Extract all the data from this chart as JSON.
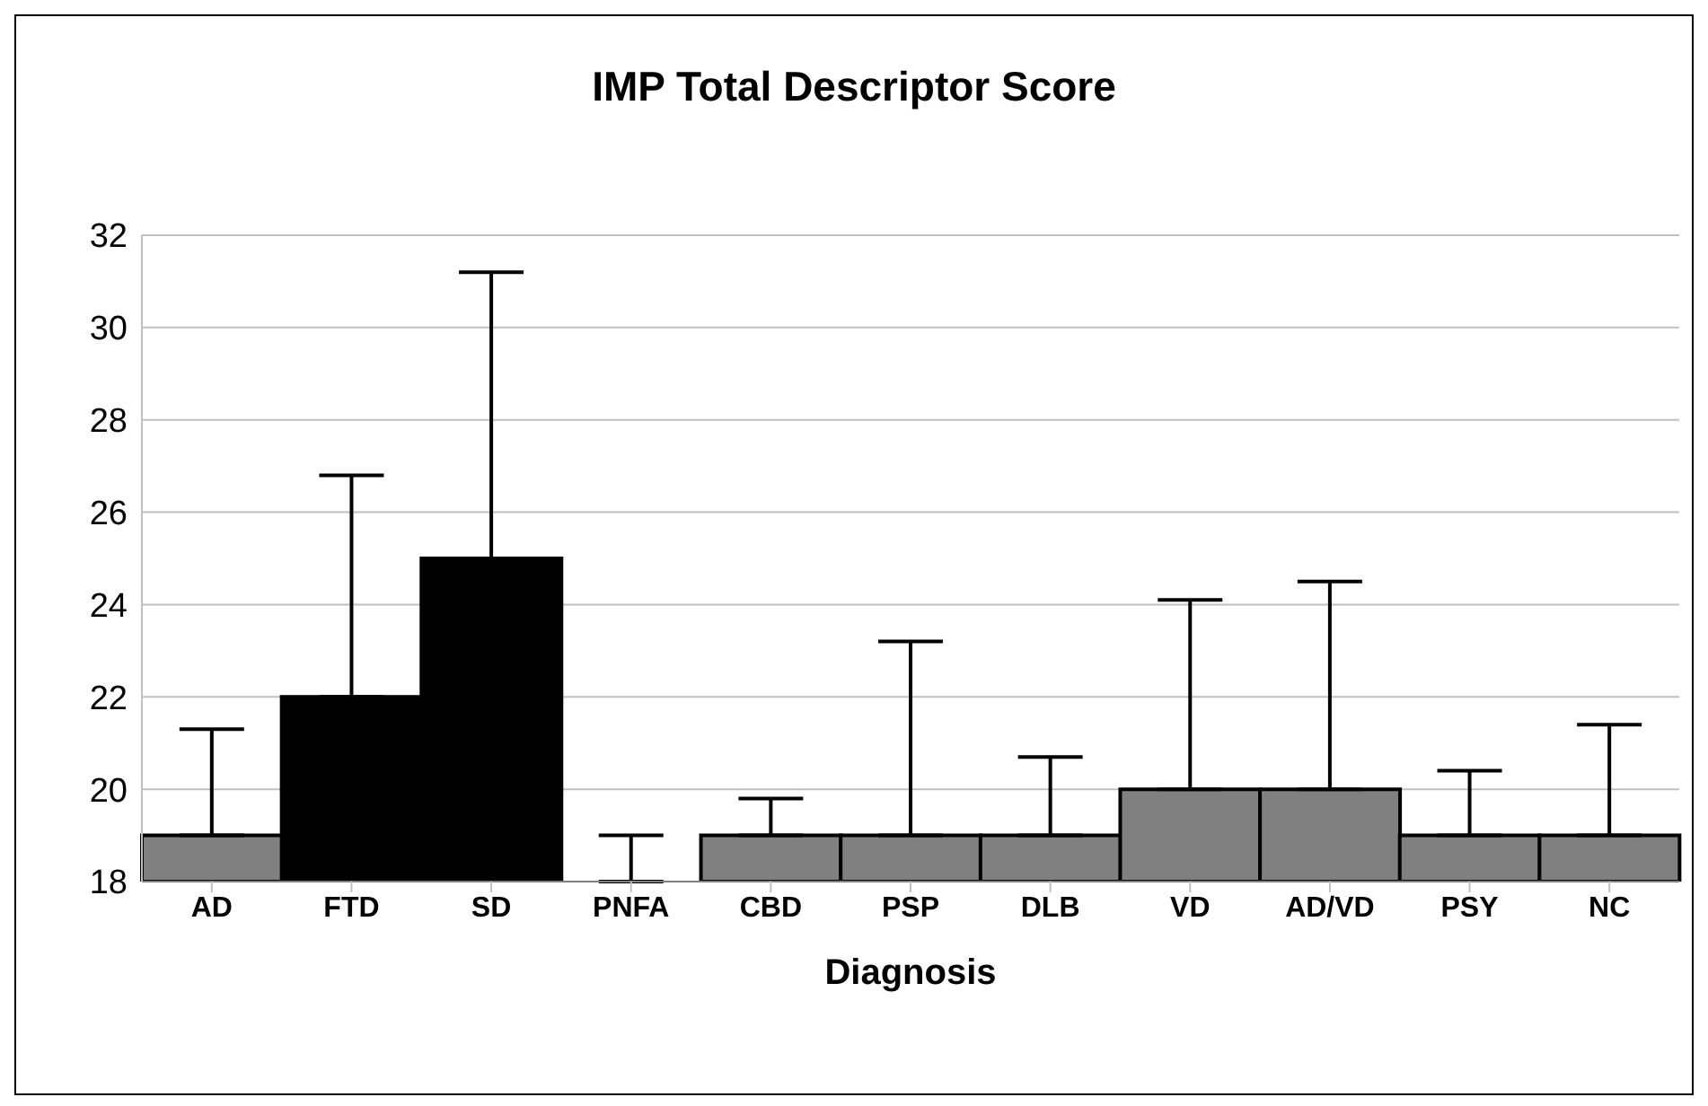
{
  "chart_data": {
    "type": "bar",
    "title": "IMP Total Descriptor Score",
    "xlabel": "Diagnosis",
    "categories": [
      "AD",
      "FTD",
      "SD",
      "PNFA",
      "CBD",
      "PSP",
      "DLB",
      "VD",
      "AD/VD",
      "PSY",
      "NC"
    ],
    "values": [
      19,
      22,
      25,
      18,
      19,
      19,
      19,
      20,
      20,
      19,
      19
    ],
    "colors": [
      "#808080",
      "#000000",
      "#000000",
      "#808080",
      "#808080",
      "#808080",
      "#808080",
      "#808080",
      "#808080",
      "#808080",
      "#808080"
    ],
    "errors": [
      [
        19,
        21.3
      ],
      [
        22,
        26.8
      ],
      [
        25,
        31.2
      ],
      [
        18,
        19.0
      ],
      [
        19,
        19.8
      ],
      [
        19,
        23.2
      ],
      [
        19,
        20.7
      ],
      [
        20,
        24.1
      ],
      [
        20,
        24.5
      ],
      [
        19,
        20.4
      ],
      [
        19,
        21.4
      ]
    ],
    "ylim": [
      18,
      32
    ],
    "yticks": [
      18,
      20,
      22,
      24,
      26,
      28,
      30,
      32
    ],
    "grid": "y",
    "legend": false
  }
}
